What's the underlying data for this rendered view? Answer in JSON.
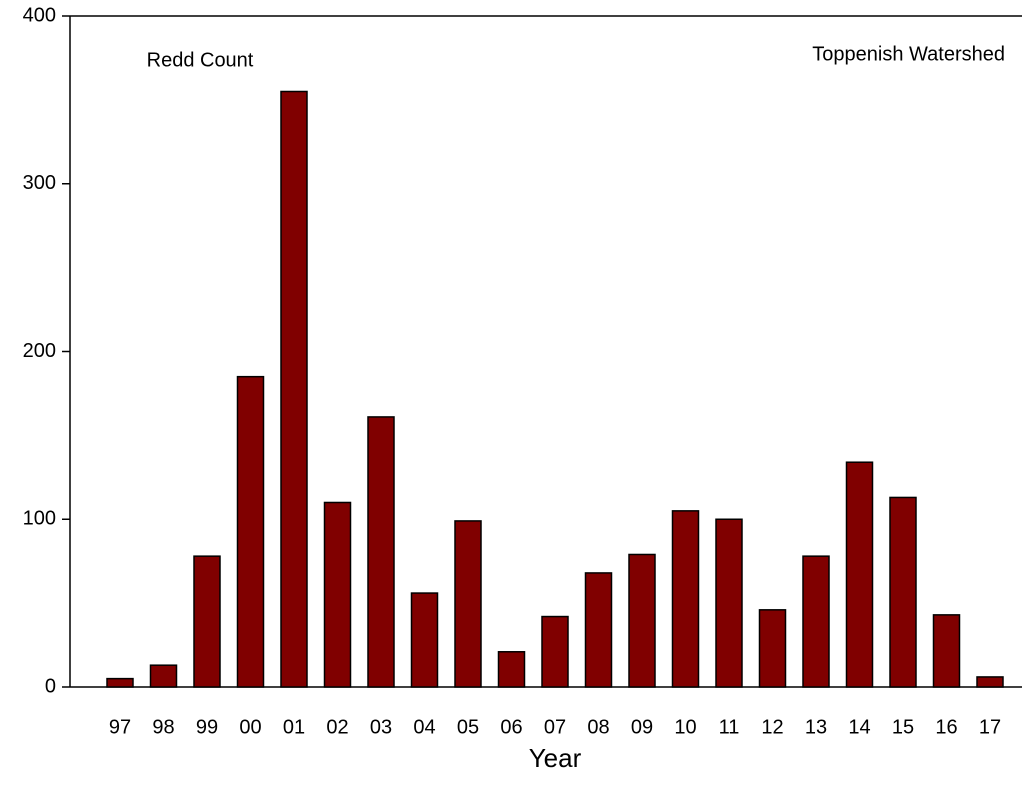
{
  "chart_data": {
    "type": "bar",
    "annotations": [
      "Redd Count",
      "Toppenish Watershed"
    ],
    "x_label": "Year",
    "categories": [
      "97",
      "98",
      "99",
      "00",
      "01",
      "02",
      "03",
      "04",
      "05",
      "06",
      "07",
      "08",
      "09",
      "10",
      "11",
      "12",
      "13",
      "14",
      "15",
      "16",
      "17"
    ],
    "values": [
      5,
      13,
      78,
      185,
      355,
      110,
      161,
      56,
      99,
      21,
      42,
      68,
      79,
      105,
      100,
      46,
      78,
      134,
      113,
      43,
      6
    ],
    "color": "#800000",
    "ylim": [
      0,
      400
    ],
    "yticks": [
      0,
      100,
      200,
      300,
      400
    ],
    "grid": false
  }
}
